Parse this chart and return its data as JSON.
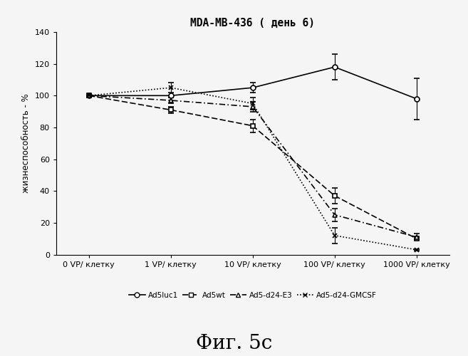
{
  "title": "MDA-MB-436 ( день 6)",
  "ylabel": "жизнеспособность - %",
  "xlabel_ticks": [
    "0 VP/ клетку",
    "1 VP/ клетку",
    "10 VP/ клетку",
    "100 VP/ клетку",
    "1000 VP/ клетку"
  ],
  "x_positions": [
    0,
    1,
    2,
    3,
    4
  ],
  "series": [
    {
      "label": "Ad5luc1",
      "y": [
        100,
        100,
        105,
        118,
        98
      ],
      "yerr": [
        0,
        0,
        3,
        8,
        13
      ],
      "linestyle": "-",
      "marker": "o",
      "markersize": 5,
      "linewidth": 1.2,
      "dashes": null
    },
    {
      "label": "Ad5wt",
      "y": [
        100,
        91,
        81,
        37,
        10
      ],
      "yerr": [
        0,
        2,
        4,
        5,
        1
      ],
      "linestyle": "--",
      "marker": "s",
      "markersize": 5,
      "linewidth": 1.2,
      "dashes": [
        5,
        2
      ]
    },
    {
      "label": "Ad5-d24-E3",
      "y": [
        100,
        97,
        93,
        25,
        11
      ],
      "yerr": [
        0,
        2,
        3,
        4,
        2
      ],
      "linestyle": "-.",
      "marker": "^",
      "markersize": 5,
      "linewidth": 1.2,
      "dashes": [
        5,
        2,
        1,
        2
      ]
    },
    {
      "label": "Ad5-d24-GMCSF",
      "y": [
        100,
        105,
        95,
        12,
        3
      ],
      "yerr": [
        0,
        3,
        4,
        5,
        0.5
      ],
      "linestyle": ":",
      "marker": "x",
      "markersize": 5,
      "linewidth": 1.2,
      "dashes": [
        1,
        1.5
      ]
    }
  ],
  "ylim": [
    0,
    140
  ],
  "yticks": [
    0,
    20,
    40,
    60,
    80,
    100,
    120,
    140
  ],
  "fig_caption": "Фиг. 5с",
  "background_color": "#f5f5f5"
}
